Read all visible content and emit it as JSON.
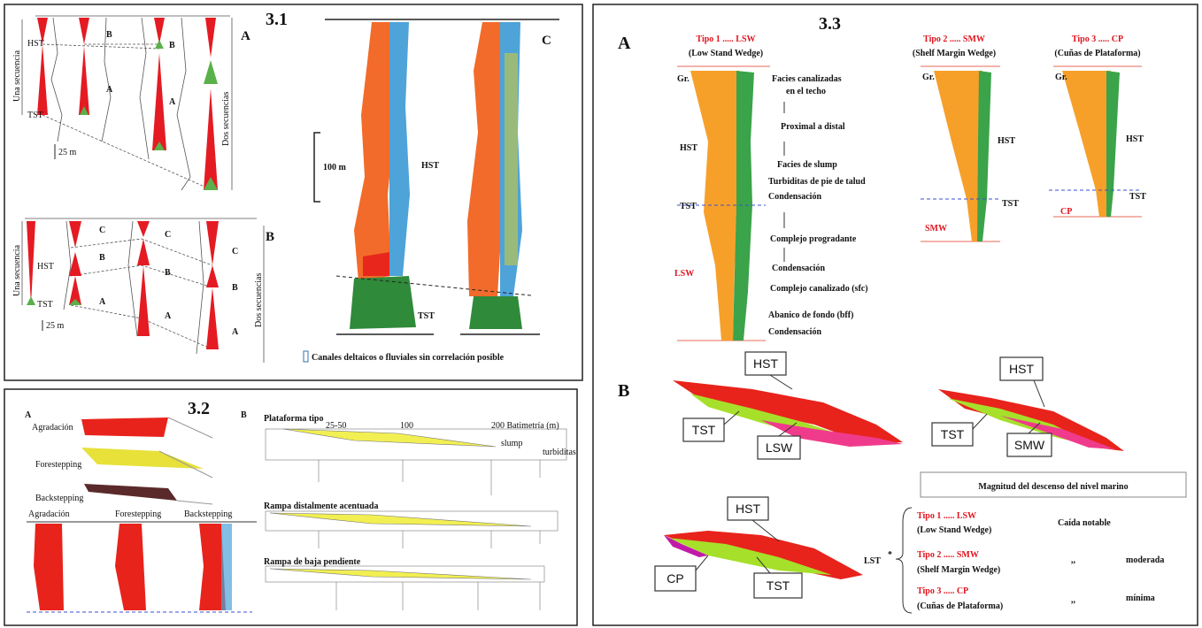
{
  "panel_3_1": {
    "number": "3.1",
    "a": {
      "label": "A",
      "units": [
        "B",
        "B",
        "A",
        "A"
      ],
      "hst": "HST",
      "tst": "TST",
      "one_sequence": "Una secuencia",
      "two_sequences": "Dos secuencias",
      "scale": "25 m"
    },
    "b": {
      "label": "B",
      "units": [
        "C",
        "C",
        "C",
        "B",
        "B",
        "B",
        "A",
        "A",
        "A"
      ],
      "hst": "HST",
      "tst": "TST",
      "one_sequence": "Una secuencia",
      "two_sequences": "Dos secuencias",
      "scale": "25 m"
    },
    "c": {
      "label": "C",
      "scale": "100 m",
      "hst": "HST",
      "tst": "TST",
      "legend": "Canales deltaicos o fluviales sin correlación posible"
    }
  },
  "panel_3_2": {
    "number": "3.2",
    "a": {
      "label": "A",
      "patterns": [
        "Agradación",
        "Forestepping",
        "Backstepping"
      ],
      "log_headers": [
        "Agradación",
        "Forestepping",
        "Backstepping"
      ]
    },
    "b": {
      "label": "B",
      "profiles": [
        "Plataforma tipo",
        "Rampa distalmente acentuada",
        "Rampa de baja pendiente"
      ],
      "depths": [
        "25-50",
        "100",
        "200 Batimetría (m)"
      ],
      "notes": [
        "slump",
        "turbiditas"
      ]
    }
  },
  "panel_3_3": {
    "number": "3.3",
    "a": {
      "label": "A",
      "types": [
        {
          "title": "Tipo 1 ..... LSW",
          "subtitle": "(Low Stand Wedge)"
        },
        {
          "title": "Tipo 2 ..... SMW",
          "subtitle": "(Shelf Margin Wedge)"
        },
        {
          "title": "Tipo 3 ..... CP",
          "subtitle": "(Cuñas de Plataforma)"
        }
      ],
      "log_labels": {
        "gr": "Gr.",
        "hst": "HST",
        "tst": "TST",
        "lsw": "LSW",
        "smw": "SMW",
        "cp": "CP"
      },
      "annotations": [
        "Facies canalizadas",
        "en el techo",
        "Proximal   a distal",
        "Facies de slump",
        "Turbiditas de pie de talud",
        "Condensación",
        "Complejo progradante",
        "Condensación",
        "Complejo canalizado (sfc)",
        "Abanico de fondo (bff)",
        "Condensación"
      ]
    },
    "b": {
      "label": "B",
      "wedge_1": [
        "HST",
        "TST",
        "LSW"
      ],
      "wedge_2": [
        "HST",
        "TST",
        "SMW"
      ],
      "wedge_3": [
        "HST",
        "CP",
        "TST"
      ],
      "magnitude_title": "Magnitud del descenso del nivel marino",
      "lst": "LST",
      "rows": [
        {
          "title": "Tipo 1 ..... LSW",
          "subtitle": "(Low Stand Wedge)",
          "mark": "",
          "drop": "Caída  notable"
        },
        {
          "title": "Tipo 2 ..... SMW",
          "subtitle": "(Shelf Margin Wedge)",
          "mark": ",,",
          "drop": "moderada"
        },
        {
          "title": "Tipo 3 ..... CP",
          "subtitle": "(Cuñas de Plataforma)",
          "mark": ",,",
          "drop": "mínima"
        }
      ]
    }
  }
}
